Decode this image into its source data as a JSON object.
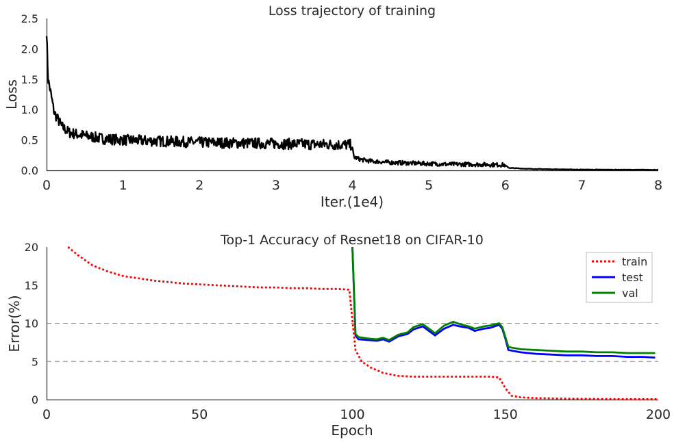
{
  "chart_data": [
    {
      "type": "line",
      "title": "Loss trajectory of training",
      "xlabel": "Iter.(1e4)",
      "ylabel": "Loss",
      "xlim": [
        0,
        8
      ],
      "ylim": [
        0,
        2.5
      ],
      "x_ticks": [
        "0",
        "1",
        "2",
        "3",
        "4",
        "5",
        "6",
        "7",
        "8"
      ],
      "y_ticks": [
        "0.0",
        "0.5",
        "1.0",
        "1.5",
        "2.0",
        "2.5"
      ],
      "grid": false,
      "colors": {
        "loss": "#000000"
      },
      "series": [
        {
          "x": [
            0.0,
            0.02,
            0.05,
            0.1,
            0.2,
            0.3,
            0.5,
            0.75,
            1.0,
            1.5,
            2.0,
            2.5,
            3.0,
            3.5,
            3.99,
            4.02,
            4.1,
            4.25,
            4.5,
            4.75,
            5.0,
            5.25,
            5.5,
            5.75,
            5.99,
            6.05,
            6.3,
            6.6,
            7.0,
            7.5,
            8.0
          ],
          "values": [
            2.3,
            1.5,
            1.3,
            0.95,
            0.72,
            0.62,
            0.57,
            0.52,
            0.5,
            0.48,
            0.46,
            0.45,
            0.44,
            0.43,
            0.42,
            0.22,
            0.18,
            0.15,
            0.13,
            0.12,
            0.11,
            0.1,
            0.1,
            0.095,
            0.09,
            0.04,
            0.025,
            0.018,
            0.012,
            0.01,
            0.008
          ]
        }
      ]
    },
    {
      "type": "line",
      "title": "Top-1 Accuracy of Resnet18 on CIFAR-10",
      "xlabel": "Epoch",
      "ylabel": "Error(%)",
      "xlim": [
        0,
        200
      ],
      "ylim": [
        0,
        20
      ],
      "x_ticks": [
        "0",
        "50",
        "100",
        "150",
        "200"
      ],
      "y_ticks": [
        "0",
        "5",
        "10",
        "15",
        "20"
      ],
      "grid": "horizontal dashed",
      "legend": "top-right",
      "series": [
        {
          "name": "train",
          "color": "#ff0000",
          "style": "dotted",
          "x": [
            7,
            10,
            15,
            20,
            25,
            30,
            35,
            40,
            45,
            50,
            55,
            60,
            65,
            70,
            75,
            80,
            85,
            90,
            95,
            99,
            101,
            103,
            106,
            110,
            115,
            120,
            125,
            130,
            135,
            140,
            145,
            148,
            150,
            152,
            155,
            160,
            170,
            180,
            190,
            200
          ],
          "values": [
            20.0,
            19.0,
            17.6,
            16.8,
            16.2,
            15.9,
            15.6,
            15.4,
            15.2,
            15.1,
            15.0,
            14.9,
            14.8,
            14.7,
            14.7,
            14.6,
            14.6,
            14.5,
            14.5,
            14.4,
            6.5,
            5.0,
            4.2,
            3.5,
            3.1,
            3.0,
            3.0,
            3.0,
            3.0,
            3.0,
            3.0,
            2.9,
            1.5,
            0.5,
            0.3,
            0.2,
            0.12,
            0.08,
            0.06,
            0.05
          ]
        },
        {
          "name": "test",
          "color": "#0000ff",
          "style": "solid",
          "x": [
            100,
            101,
            102,
            105,
            108,
            110,
            112,
            115,
            118,
            120,
            123,
            125,
            127,
            130,
            133,
            135,
            138,
            140,
            143,
            145,
            148,
            149,
            150,
            151,
            155,
            160,
            165,
            170,
            175,
            180,
            185,
            190,
            195,
            199
          ],
          "values": [
            20.0,
            8.4,
            7.9,
            7.8,
            7.7,
            7.9,
            7.6,
            8.3,
            8.6,
            9.2,
            9.6,
            9.0,
            8.4,
            9.3,
            9.8,
            9.6,
            9.4,
            9.0,
            9.3,
            9.4,
            9.8,
            9.3,
            8.0,
            6.5,
            6.2,
            6.0,
            5.9,
            5.8,
            5.8,
            5.7,
            5.7,
            5.6,
            5.6,
            5.5
          ]
        },
        {
          "name": "val",
          "color": "#008000",
          "style": "solid",
          "x": [
            100,
            101,
            102,
            105,
            108,
            110,
            112,
            115,
            118,
            120,
            123,
            125,
            127,
            130,
            133,
            135,
            138,
            140,
            143,
            145,
            148,
            149,
            150,
            151,
            155,
            160,
            165,
            170,
            175,
            180,
            185,
            190,
            195,
            199
          ],
          "values": [
            20.0,
            8.6,
            8.2,
            8.0,
            7.9,
            8.1,
            7.8,
            8.5,
            8.8,
            9.5,
            9.9,
            9.3,
            8.7,
            9.7,
            10.2,
            9.9,
            9.6,
            9.3,
            9.6,
            9.7,
            10.0,
            9.5,
            8.2,
            6.9,
            6.6,
            6.5,
            6.4,
            6.3,
            6.3,
            6.2,
            6.2,
            6.1,
            6.1,
            6.1
          ]
        }
      ]
    }
  ]
}
